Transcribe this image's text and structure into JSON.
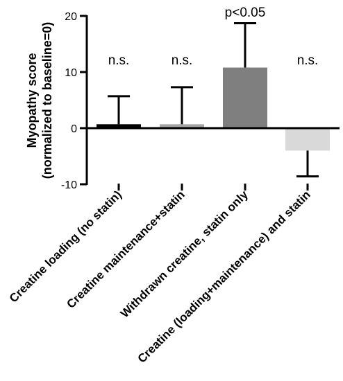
{
  "chart_data": {
    "type": "bar",
    "title": "",
    "xlabel": "",
    "ylabel_line1": "Myopathy score",
    "ylabel_line2": "(normalized to baseline=0)",
    "ylim": [
      -10,
      20
    ],
    "yticks": [
      -10,
      0,
      10,
      20
    ],
    "ytick_labels": [
      "-10",
      "0",
      "10",
      "20"
    ],
    "categories": [
      "Creatine loading (no statin)",
      "Creatine maintenance+statin",
      "Withdrawn creatine, statin only",
      "Creatine (loading+maintenance) and statin"
    ],
    "values": [
      0.7,
      0.7,
      10.8,
      -4.0
    ],
    "error_bars": [
      5.0,
      6.6,
      7.9,
      4.6
    ],
    "bar_colors": [
      "#000000",
      "#a6a6a6",
      "#7f7f7f",
      "#d9d9d9"
    ],
    "annotations": [
      "n.s.",
      "n.s.",
      "p<0.05",
      "n.s."
    ],
    "grid": false,
    "legend": "none"
  }
}
